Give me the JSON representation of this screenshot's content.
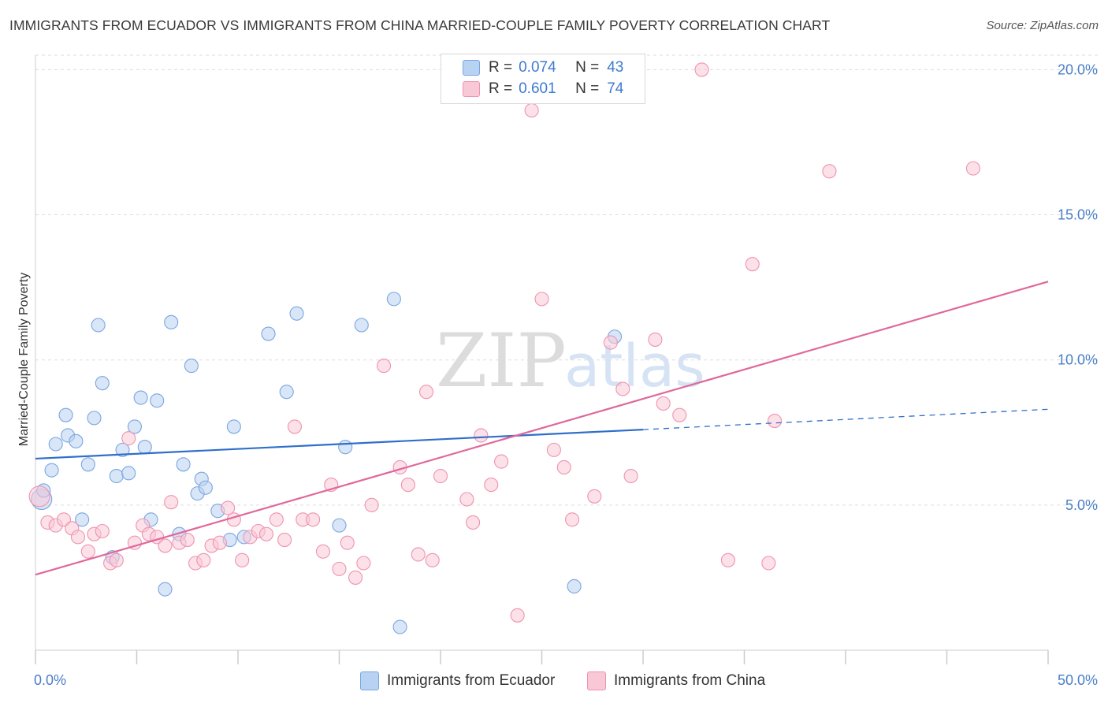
{
  "title": "IMMIGRANTS FROM ECUADOR VS IMMIGRANTS FROM CHINA MARRIED-COUPLE FAMILY POVERTY CORRELATION CHART",
  "source": "Source: ZipAtlas.com",
  "watermark": {
    "zip": "ZIP",
    "atlas": "atlas"
  },
  "colors": {
    "ecuador_fill": "#b8d2f3",
    "ecuador_stroke": "#7aa6df",
    "ecuador_line": "#2f6fcb",
    "china_fill": "#f9c8d7",
    "china_stroke": "#ee93b0",
    "china_line": "#e0689a",
    "tick": "#4a7fc9",
    "grid": "#dddddd"
  },
  "legend_top": [
    {
      "r_label": "R =",
      "r_value": "0.074",
      "n_label": "N =",
      "n_value": "43"
    },
    {
      "r_label": "R =",
      "r_value": "0.601",
      "n_label": "N =",
      "n_value": "74"
    }
  ],
  "legend_bottom": [
    "Immigrants from Ecuador",
    "Immigrants from China"
  ],
  "chart_data": {
    "type": "scatter",
    "title": "IMMIGRANTS FROM ECUADOR VS IMMIGRANTS FROM CHINA MARRIED-COUPLE FAMILY POVERTY CORRELATION CHART",
    "xlabel": "",
    "ylabel": "Married-Couple Family Poverty",
    "xlim": [
      0,
      50
    ],
    "ylim": [
      0,
      20.5
    ],
    "x_tick_labels": [
      {
        "value": 0,
        "label": "0.0%"
      },
      {
        "value": 50,
        "label": "50.0%"
      }
    ],
    "y_tick_labels": [
      {
        "value": 5,
        "label": "5.0%"
      },
      {
        "value": 10,
        "label": "10.0%"
      },
      {
        "value": 15,
        "label": "15.0%"
      },
      {
        "value": 20,
        "label": "20.0%"
      }
    ],
    "grid": true,
    "legend_position": "top-center",
    "series": [
      {
        "name": "Immigrants from Ecuador",
        "R": 0.074,
        "N": 43,
        "trend": {
          "x0": 0,
          "y0": 6.6,
          "x1": 30,
          "y1": 7.6,
          "dashed_to_x": 50,
          "dashed_to_y": 8.3
        },
        "points": [
          [
            0.3,
            5.2
          ],
          [
            0.4,
            5.5
          ],
          [
            0.8,
            6.2
          ],
          [
            1.0,
            7.1
          ],
          [
            1.5,
            8.1
          ],
          [
            1.6,
            7.4
          ],
          [
            2.0,
            7.2
          ],
          [
            2.3,
            4.5
          ],
          [
            2.6,
            6.4
          ],
          [
            2.9,
            8.0
          ],
          [
            3.1,
            11.2
          ],
          [
            3.3,
            9.2
          ],
          [
            3.8,
            3.2
          ],
          [
            4.0,
            6.0
          ],
          [
            4.3,
            6.9
          ],
          [
            4.6,
            6.1
          ],
          [
            4.9,
            7.7
          ],
          [
            5.2,
            8.7
          ],
          [
            5.4,
            7.0
          ],
          [
            5.7,
            4.5
          ],
          [
            6.0,
            8.6
          ],
          [
            6.4,
            2.1
          ],
          [
            6.7,
            11.3
          ],
          [
            7.1,
            4.0
          ],
          [
            7.3,
            6.4
          ],
          [
            7.7,
            9.8
          ],
          [
            8.0,
            5.4
          ],
          [
            8.2,
            5.9
          ],
          [
            8.4,
            5.6
          ],
          [
            9.0,
            4.8
          ],
          [
            9.6,
            3.8
          ],
          [
            9.8,
            7.7
          ],
          [
            10.3,
            3.9
          ],
          [
            11.5,
            10.9
          ],
          [
            12.4,
            8.9
          ],
          [
            12.9,
            11.6
          ],
          [
            15.0,
            4.3
          ],
          [
            15.3,
            7.0
          ],
          [
            16.1,
            11.2
          ],
          [
            17.7,
            12.1
          ],
          [
            18.0,
            0.8
          ],
          [
            26.6,
            2.2
          ],
          [
            28.6,
            10.8
          ]
        ]
      },
      {
        "name": "Immigrants from China",
        "R": 0.601,
        "N": 74,
        "trend": {
          "x0": 0,
          "y0": 2.6,
          "x1": 50,
          "y1": 12.7
        },
        "points": [
          [
            0.2,
            5.3
          ],
          [
            0.6,
            4.4
          ],
          [
            1.0,
            4.3
          ],
          [
            1.4,
            4.5
          ],
          [
            1.8,
            4.2
          ],
          [
            2.1,
            3.9
          ],
          [
            2.6,
            3.4
          ],
          [
            2.9,
            4.0
          ],
          [
            3.3,
            4.1
          ],
          [
            3.7,
            3.0
          ],
          [
            4.0,
            3.1
          ],
          [
            4.6,
            7.3
          ],
          [
            4.9,
            3.7
          ],
          [
            5.3,
            4.3
          ],
          [
            5.6,
            4.0
          ],
          [
            6.0,
            3.9
          ],
          [
            6.4,
            3.6
          ],
          [
            6.7,
            5.1
          ],
          [
            7.1,
            3.7
          ],
          [
            7.5,
            3.8
          ],
          [
            7.9,
            3.0
          ],
          [
            8.3,
            3.1
          ],
          [
            8.7,
            3.6
          ],
          [
            9.1,
            3.7
          ],
          [
            9.5,
            4.9
          ],
          [
            9.8,
            4.5
          ],
          [
            10.2,
            3.1
          ],
          [
            10.6,
            3.9
          ],
          [
            11.0,
            4.1
          ],
          [
            11.4,
            4.0
          ],
          [
            11.9,
            4.5
          ],
          [
            12.3,
            3.8
          ],
          [
            12.8,
            7.7
          ],
          [
            13.2,
            4.5
          ],
          [
            13.7,
            4.5
          ],
          [
            14.2,
            3.4
          ],
          [
            14.6,
            5.7
          ],
          [
            15.0,
            2.8
          ],
          [
            15.4,
            3.7
          ],
          [
            15.8,
            2.5
          ],
          [
            16.2,
            3.0
          ],
          [
            16.6,
            5.0
          ],
          [
            17.2,
            9.8
          ],
          [
            18.0,
            6.3
          ],
          [
            18.4,
            5.7
          ],
          [
            18.9,
            3.3
          ],
          [
            19.3,
            8.9
          ],
          [
            19.6,
            3.1
          ],
          [
            20.0,
            6.0
          ],
          [
            21.3,
            5.2
          ],
          [
            21.6,
            4.4
          ],
          [
            22.0,
            7.4
          ],
          [
            22.5,
            5.7
          ],
          [
            23.0,
            6.5
          ],
          [
            23.8,
            1.2
          ],
          [
            24.5,
            18.6
          ],
          [
            25.0,
            12.1
          ],
          [
            25.6,
            6.9
          ],
          [
            26.1,
            6.3
          ],
          [
            26.5,
            4.5
          ],
          [
            27.6,
            5.3
          ],
          [
            28.4,
            10.6
          ],
          [
            29.0,
            9.0
          ],
          [
            29.4,
            6.0
          ],
          [
            30.6,
            10.7
          ],
          [
            31.0,
            8.5
          ],
          [
            31.8,
            8.1
          ],
          [
            32.9,
            20.0
          ],
          [
            34.2,
            3.1
          ],
          [
            35.4,
            13.3
          ],
          [
            36.2,
            3.0
          ],
          [
            36.5,
            7.9
          ],
          [
            39.2,
            16.5
          ],
          [
            46.3,
            16.6
          ]
        ]
      }
    ]
  }
}
